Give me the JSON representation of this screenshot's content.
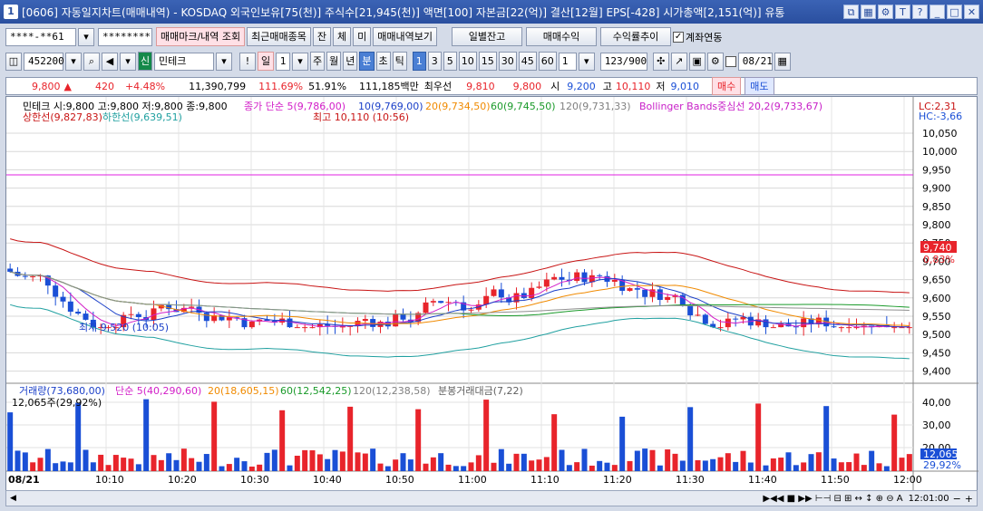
{
  "window": {
    "number": "1",
    "title": "[0606] 자동일지차트(매매내역) - KOSDAQ 외국인보유[75(천)] 주식수[21,945(천)] 액면[100] 자본금[22(억)] 결산[12월] EPS[-428] 시가총액[2,151(억)] 유통"
  },
  "toolbar1": {
    "account": "****-**61",
    "password": "********",
    "b_mark": "매매마크/내역 조회",
    "b_recent": "최근매매종목",
    "b_jan": "잔",
    "b_che": "체",
    "b_mi": "미",
    "b_hist": "매매내역보기",
    "b_daily": "일별잔고",
    "b_profit": "매매수익",
    "b_rate": "수익률추이",
    "link_label": "계좌연동"
  },
  "toolbar2": {
    "code": "452200",
    "badge": "신",
    "name": "민테크",
    "interval": "1",
    "units": [
      "주",
      "월",
      "년",
      "분",
      "초",
      "틱"
    ],
    "nums": [
      "1",
      "3",
      "5",
      "10",
      "15",
      "30",
      "45",
      "60"
    ],
    "period": "1",
    "count": "123/900",
    "date": "08/21"
  },
  "quote": {
    "price": "9,800",
    "arrow": "▲",
    "change": "420",
    "pct": "+4.48%",
    "volume": "11,390,799",
    "vol_pct": "111.69%",
    "ratio": "51.91%",
    "amount": "111,185백만",
    "priority_label": "최우선",
    "bid": "9,810",
    "ask": "9,800",
    "open_l": "시",
    "open": "9,200",
    "high_l": "고",
    "high": "10,110",
    "low_l": "저",
    "low": "9,010",
    "buy": "매수",
    "sell": "매도"
  },
  "price_legend": {
    "l1": "민테크 시:9,800 고:9,800 저:9,800 종:9,800",
    "l2": "종가 단순 5(9,786,00)",
    "l3": "10(9,769,00)",
    "l4": "20(9,734,50)",
    "l5": "60(9,745,50)",
    "l6": "120(9,731,33)",
    "l7": "Bollinger Bands중심선 20,2(9,733,67)",
    "l8": "상한선(9,827,83)",
    "l9": "하한선(9,639,51)",
    "lc": "LC:2,31",
    "hc": "HC:-3,66",
    "high_note": "최고 10,110 (10:56)",
    "low_note": "최저 9,520 (10:05)",
    "last_price": "9,740",
    "last_pct": "0,83%"
  },
  "vol_legend": {
    "v1": "거래량(73,680,00)",
    "v2": "단순 5(40,290,60)",
    "v3": "20(18,605,15)",
    "v4": "60(12,542,25)",
    "v5": "120(12,238,58)",
    "v6": "분봉거래대금(7,22)",
    "v7": "12,065주(29,92%)",
    "last": "12,065",
    "last_pct": "29,92%"
  },
  "y_labels": [
    "10,050",
    "10,000",
    "9,950",
    "9,900",
    "9,850",
    "9,800",
    "9,750",
    "9,700",
    "9,650",
    "9,600",
    "9,550",
    "9,500",
    "9,450",
    "9,400"
  ],
  "vol_labels": [
    "40,00",
    "30,00",
    "20,00"
  ],
  "x_labels": [
    "08/21",
    "10:10",
    "10:20",
    "10:30",
    "10:40",
    "10:50",
    "11:00",
    "11:10",
    "11:20",
    "11:30",
    "11:40",
    "11:50",
    "12:00"
  ],
  "x_right": "12:01:00",
  "colors": {
    "up": "#e8242b",
    "down": "#1a4fd6",
    "ma5": "#d21ec8",
    "ma10": "#1a3fc8",
    "ma20": "#f08a00",
    "ma60": "#1a9a2a",
    "ma120": "#909090",
    "bb": "#c81414",
    "bbl": "#20a0a0"
  }
}
